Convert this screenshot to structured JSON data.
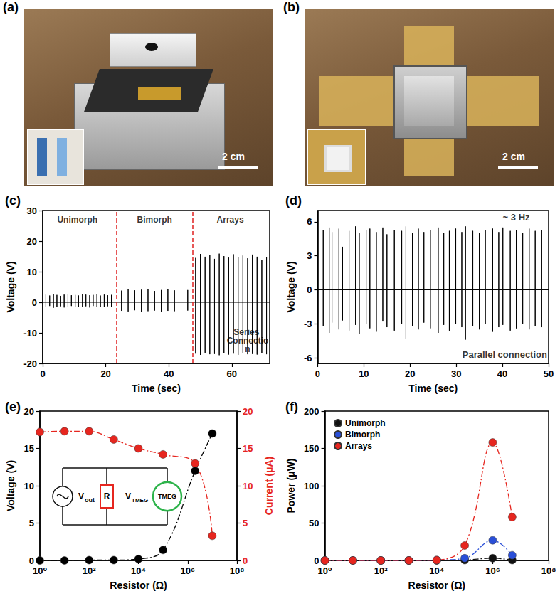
{
  "photos": [
    {
      "label": "(a)",
      "scale_bar": "2 cm"
    },
    {
      "label": "(b)",
      "scale_bar": "2 cm"
    }
  ],
  "chart_data": [
    {
      "label": "(c)",
      "type": "line",
      "xlabel": "Time (sec)",
      "ylabel": "Voltage (V)",
      "xlim": [
        0,
        72
      ],
      "xticks": [
        0,
        20,
        40,
        60
      ],
      "ylim": [
        -20,
        30
      ],
      "yticks": [
        -20,
        -10,
        0,
        10,
        20,
        30
      ],
      "grid": false,
      "baseline": 0,
      "dividers": [
        23.5,
        47.5
      ],
      "x": [
        1,
        2.2,
        3.4,
        4.5,
        5.7,
        6.8,
        8,
        9.1,
        10.3,
        11.4,
        12.6,
        13.7,
        14.9,
        16,
        17.2,
        18.3,
        19.5,
        20.6,
        21.8,
        25,
        27.1,
        29.2,
        31.3,
        33.4,
        35.5,
        37.6,
        39.7,
        41.8,
        43.9,
        46,
        48.5,
        50,
        51.5,
        53,
        54.5,
        56,
        57.5,
        59,
        60.5,
        62,
        63.5,
        65,
        66.5,
        68,
        69.5,
        71
      ],
      "series": [
        {
          "color": "#000000",
          "values": [
            2.5,
            2.2,
            2.6,
            2.4,
            2.1,
            2.5,
            2.7,
            2.3,
            2.4,
            2.2,
            2.6,
            2.5,
            2.3,
            2.4,
            2.6,
            2.2,
            2.5,
            2.3,
            2.4,
            3.8,
            4.2,
            3.9,
            4.1,
            4.3,
            3.7,
            4.0,
            4.2,
            3.9,
            4.1,
            4.0,
            14.5,
            15.8,
            14.9,
            15.5,
            14.2,
            15.9,
            15.1,
            14.6,
            15.7,
            14.8,
            15.3,
            14.4,
            15.6,
            14.9,
            13.8,
            14.7
          ],
          "minima": [
            -1.6,
            -1.2,
            -1.8,
            -1.4,
            -1.3,
            -1.7,
            -1.5,
            -1.2,
            -1.6,
            -1.4,
            -1.5,
            -1.3,
            -1.7,
            -1.2,
            -1.6,
            -1.4,
            -1.5,
            -1.3,
            -1.6,
            -2.8,
            -3.0,
            -2.6,
            -3.1,
            -2.9,
            -2.7,
            -3.0,
            -2.8,
            -2.9,
            -3.1,
            -2.7,
            -16.8,
            -17.2,
            -16.5,
            -17.0,
            -16.9,
            -17.3,
            -16.6,
            -17.1,
            -16.8,
            -17.2,
            -16.7,
            -17.0,
            -16.9,
            -17.1,
            -16.6,
            -17.0
          ]
        }
      ],
      "annotations": [
        {
          "text": "Unimorph",
          "x": 11,
          "y": 27
        },
        {
          "text": "Bimorph",
          "x": 35.5,
          "y": 27
        },
        {
          "text": "Arrays",
          "x": 59.5,
          "y": 27
        },
        {
          "text": "Series Connection",
          "x": 65,
          "y": -12.5
        }
      ]
    },
    {
      "label": "(d)",
      "type": "line",
      "xlabel": "Time (sec)",
      "ylabel": "Voltage (V)",
      "xlim": [
        0,
        50
      ],
      "xticks": [
        0,
        10,
        20,
        30,
        40,
        50
      ],
      "ylim": [
        -6.5,
        7
      ],
      "yticks": [
        -6,
        -3,
        0,
        3,
        6
      ],
      "grid": false,
      "baseline": 0,
      "x": [
        1.2,
        2.5,
        3.1,
        4.6,
        5.4,
        6.8,
        8.2,
        9.0,
        10.5,
        11.3,
        12.7,
        14.1,
        15.0,
        16.6,
        18.2,
        19.1,
        20.5,
        21.8,
        23.0,
        24.4,
        26.1,
        27.3,
        28.5,
        29.9,
        31.2,
        32.0,
        33.6,
        35.0,
        36.3,
        37.9,
        39.2,
        40.1,
        41.7,
        43.0,
        44.4,
        45.8,
        47.1,
        48.5
      ],
      "series": [
        {
          "color": "#000000",
          "values": [
            5.3,
            5.5,
            5.1,
            5.4,
            3.8,
            5.2,
            5.6,
            5.0,
            5.3,
            5.4,
            5.1,
            5.5,
            4.9,
            5.3,
            5.2,
            5.6,
            5.0,
            5.4,
            5.1,
            5.3,
            5.5,
            5.0,
            5.2,
            5.4,
            5.1,
            5.6,
            5.2,
            5.0,
            5.3,
            5.4,
            5.1,
            5.5,
            5.2,
            5.3,
            5.0,
            5.4,
            5.2,
            5.3
          ],
          "minima": [
            -3.2,
            -3.8,
            -2.9,
            -3.5,
            -2.7,
            -3.6,
            -3.1,
            -3.9,
            -3.0,
            -3.4,
            -3.7,
            -2.8,
            -3.3,
            -3.6,
            -3.0,
            -4.3,
            -3.2,
            -3.5,
            -2.9,
            -3.4,
            -3.8,
            -3.1,
            -3.6,
            -3.0,
            -3.3,
            -4.4,
            -3.2,
            -3.5,
            -3.0,
            -3.7,
            -3.3,
            -3.1,
            -3.6,
            -3.4,
            -3.0,
            -3.5,
            -3.2,
            -3.3
          ]
        }
      ],
      "annotations": [
        {
          "text": "~ 3 Hz",
          "x": 43,
          "y": 6.4
        },
        {
          "text": "Parallel connection",
          "x": 40.5,
          "y": -5.7
        }
      ]
    },
    {
      "label": "(e)",
      "type": "line",
      "marker": "circle",
      "line_style": "dashdot",
      "log": "x",
      "grid": false,
      "xlabel": "Resistor (Ω)",
      "ylabel": "Voltage (V)",
      "y2label": "Current (μA)",
      "xlim": [
        1,
        100000000
      ],
      "xticks": [
        {
          "value": 1,
          "label": "10⁰"
        },
        {
          "value": 100,
          "label": "10²"
        },
        {
          "value": 10000,
          "label": "10⁴"
        },
        {
          "value": 1000000,
          "label": "10⁶"
        },
        {
          "value": 100000000,
          "label": "10⁸"
        }
      ],
      "ylim": [
        0,
        20
      ],
      "yticks": [
        0,
        5,
        10,
        15,
        20
      ],
      "y2lim": [
        0,
        20
      ],
      "y2ticks": [
        0,
        5,
        10,
        15,
        20
      ],
      "x": [
        1,
        10,
        100,
        1000,
        10000,
        100000,
        2000000,
        10000000
      ],
      "series": [
        {
          "color": "#000000",
          "values": [
            0,
            0,
            0.05,
            0.05,
            0.2,
            1.4,
            12,
            17
          ]
        },
        {
          "color": "#e6261f",
          "axis": "y2",
          "values": [
            17.2,
            17.3,
            17.3,
            16.2,
            15,
            14.2,
            13,
            3.3
          ]
        }
      ],
      "circuit": {
        "load": "R",
        "device": "TMEG",
        "output_voltage": {
          "symbol": "V",
          "subscript": "out"
        },
        "device_voltage": {
          "symbol": "V",
          "subscript": "TMEG"
        }
      }
    },
    {
      "label": "(f)",
      "type": "line",
      "marker": "circle",
      "line_style": "dashdot",
      "log": "x",
      "grid": false,
      "legend": "upper left",
      "xlabel": "Resistor (Ω)",
      "ylabel": "Power (μW)",
      "xlim": [
        1,
        100000000
      ],
      "xticks": [
        {
          "value": 1,
          "label": "10⁰"
        },
        {
          "value": 100,
          "label": "10²"
        },
        {
          "value": 10000,
          "label": "10⁴"
        },
        {
          "value": 1000000,
          "label": "10⁶"
        },
        {
          "value": 100000000,
          "label": "10⁸"
        }
      ],
      "ylim": [
        0,
        200
      ],
      "yticks": [
        0,
        50,
        100,
        150,
        200
      ],
      "x": [
        1,
        10,
        100,
        1000,
        10000,
        100000,
        1000000,
        5000000
      ],
      "series": [
        {
          "name": "Unimorph",
          "color": "#111111",
          "values": [
            0,
            0,
            0,
            0,
            0,
            0.5,
            3,
            0.5
          ]
        },
        {
          "name": "Bimorph",
          "color": "#2a4fd8",
          "values": [
            0,
            0,
            0,
            0,
            0.5,
            3,
            27,
            7
          ]
        },
        {
          "name": "Arrays",
          "color": "#e6261f",
          "values": [
            0,
            0,
            0,
            0,
            0.5,
            20,
            158,
            58
          ]
        }
      ]
    }
  ]
}
